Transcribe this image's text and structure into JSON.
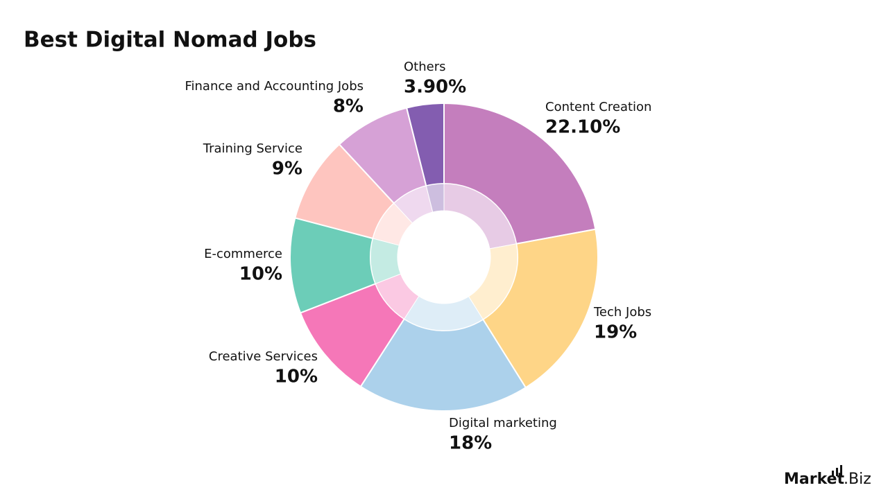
{
  "chart_data": {
    "type": "donut",
    "title": "Best Digital Nomad Jobs",
    "categories": [
      "Content Creation",
      "Tech Jobs",
      "Digital marketing",
      "Creative Services",
      "E-commerce",
      "Training Service",
      "Finance and Accounting Jobs",
      "Others"
    ],
    "values": [
      22.1,
      19,
      18,
      10,
      10,
      9,
      8,
      3.9
    ],
    "value_labels": [
      "22.10%",
      "19%",
      "18%",
      "10%",
      "10%",
      "9%",
      "8%",
      "3.90%"
    ],
    "colors": [
      "#c47ebd",
      "#fed587",
      "#acd1eb",
      "#f577b8",
      "#6ccdb8",
      "#fec5bf",
      "#d6a1d6",
      "#835db0"
    ]
  },
  "logo": {
    "name": "Market",
    "suffix": ".Biz"
  }
}
